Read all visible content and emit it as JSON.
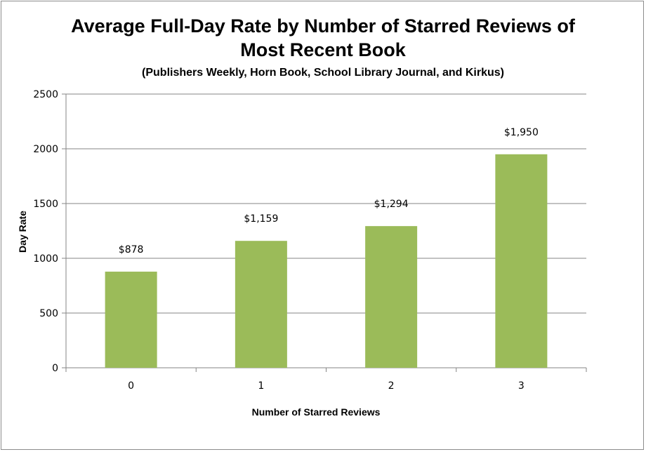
{
  "chart_data": {
    "type": "bar",
    "title_line1": "Average Full-Day Rate by Number of Starred Reviews of",
    "title_line2": "Most Recent Book",
    "subtitle": "(Publishers Weekly, Horn Book, School Library Journal, and Kirkus)",
    "xlabel": "Number of Starred Reviews",
    "ylabel": "Day Rate",
    "categories": [
      "0",
      "1",
      "2",
      "3"
    ],
    "values": [
      878,
      1159,
      1294,
      1950
    ],
    "data_labels": [
      "$878",
      "$1,159",
      "$1,294",
      "$1,950"
    ],
    "ylim": [
      0,
      2500
    ],
    "yticks": [
      0,
      500,
      1000,
      1500,
      2000,
      2500
    ],
    "grid": true,
    "bar_color": "#9BBB59",
    "grid_color": "#868686"
  }
}
